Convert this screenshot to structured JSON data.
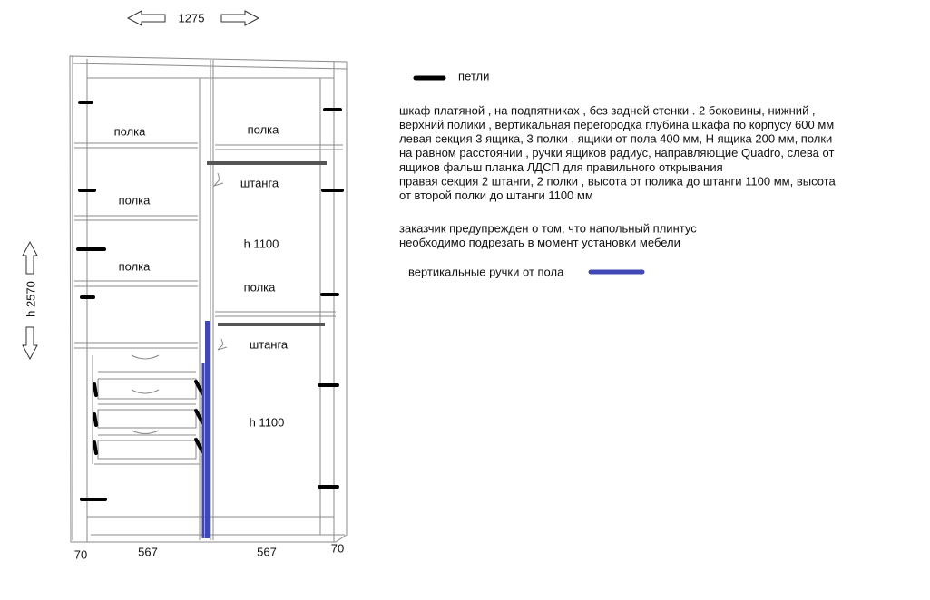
{
  "dimensions": {
    "width": "1275",
    "height": "h 2570",
    "bottom": [
      "70",
      "567",
      "567",
      "70"
    ]
  },
  "labels": [
    "полка",
    "полка",
    "полка",
    "полка",
    "штанга",
    "h 1100",
    "полка",
    "штанга",
    "h 1100"
  ],
  "legend": {
    "hinges": "петли",
    "handles": "вертикальные ручки от пола"
  },
  "description": [
    "шкаф платяной , на подпятниках , без задней стенки . 2 боковины, нижний ,",
    "верхний полики , вертикальная перегородка глубина шкафа по корпусу 600 мм",
    "левая секция  3 ящика, 3 полки , ящики от пола 400 мм, Н ящика 200 мм, полки",
    "на равном расстоянии , ручки ящиков радиус, направляющие Quadro, слева от",
    "ящиков фальш планка ЛДСП для правильного открывания",
    "правая секция 2 штанги, 2 полки , высота от полика до штанги 1100 мм, высота",
    "от второй полки до штанги 1100 мм"
  ],
  "notice": [
    "заказчик предупрежден о том, что напольный плинтус",
    "необходимо подрезать в момент установки мебели"
  ]
}
